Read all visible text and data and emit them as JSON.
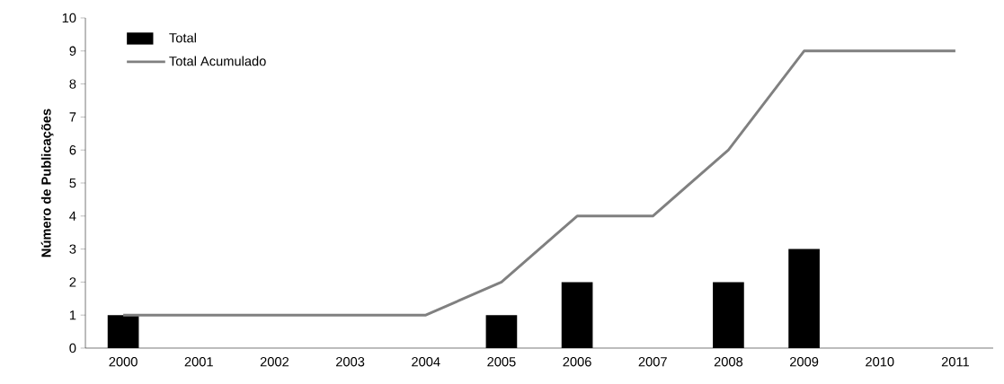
{
  "chart_data": {
    "type": "bar",
    "ylabel": "Número de Publicações",
    "categories": [
      "2000",
      "2001",
      "2002",
      "2003",
      "2004",
      "2005",
      "2006",
      "2007",
      "2008",
      "2009",
      "2010",
      "2011"
    ],
    "series": [
      {
        "name": "Total",
        "color": "#000000",
        "values": [
          1,
          0,
          0,
          0,
          0,
          1,
          2,
          0,
          2,
          3,
          0,
          0
        ]
      },
      {
        "name": "Total Acumulado",
        "type": "line",
        "color": "#808080",
        "values": [
          1,
          1,
          1,
          1,
          1,
          2,
          4,
          4,
          6,
          9,
          9,
          9
        ]
      }
    ],
    "ylim": [
      0,
      10
    ],
    "yticks": [
      0,
      1,
      2,
      3,
      4,
      5,
      6,
      7,
      8,
      9,
      10
    ],
    "grid": false,
    "legend": "top left",
    "marker": "none",
    "line_style": "solid"
  }
}
